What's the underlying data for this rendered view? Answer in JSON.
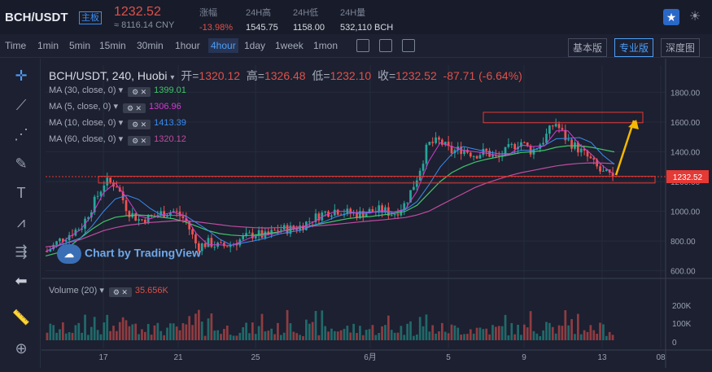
{
  "header": {
    "symbol": "BCH/USDT",
    "tag": "主板",
    "price": "1232.52",
    "price_cny": "≈ 8116.14 CNY",
    "stats": [
      {
        "label": "涨幅",
        "value": "-13.98%",
        "color": "#e0504a"
      },
      {
        "label": "24H高",
        "value": "1545.75",
        "color": "#d8dbe4"
      },
      {
        "label": "24H低",
        "value": "1158.00",
        "color": "#d8dbe4"
      },
      {
        "label": "24H量",
        "value": "532,110 BCH",
        "color": "#d8dbe4"
      }
    ]
  },
  "toolbar": {
    "time_label": "Time",
    "intervals": [
      "1min",
      "5min",
      "15min",
      "30min",
      "1hour",
      "4hour",
      "1day",
      "1week",
      "1mon"
    ],
    "active_interval": "4hour",
    "views": [
      "基本版",
      "专业版",
      "深度图"
    ],
    "active_view": "专业版"
  },
  "chart_title": {
    "pair": "BCH/USDT, 240, Huobi",
    "open_label": "开=",
    "open": "1320.12",
    "high_label": "高=",
    "high": "1326.48",
    "low_label": "低=",
    "low": "1232.10",
    "close_label": "收=",
    "close": "1232.52",
    "change": "-87.71 (-6.64%)"
  },
  "indicators": [
    {
      "label": "MA (30, close, 0)",
      "value": "1399.01",
      "color": "#3fc56a"
    },
    {
      "label": "MA (5, close, 0)",
      "value": "1306.96",
      "color": "#d43ad1"
    },
    {
      "label": "MA (10, close, 0)",
      "value": "1413.39",
      "color": "#3a8cf0"
    },
    {
      "label": "MA (60, close, 0)",
      "value": "1320.12",
      "color": "#c04ca0"
    }
  ],
  "watermark": "Chart by TradingView",
  "volume": {
    "label": "Volume (20)",
    "value": "35.656K"
  },
  "chart_data": {
    "type": "candlestick",
    "ylim": [
      560,
      1900
    ],
    "y_ticks": [
      "1800.00",
      "1600.00",
      "1400.00",
      "1200.00",
      "1000.00",
      "800.00",
      "600.00"
    ],
    "y_tick_values": [
      1800,
      1600,
      1400,
      1200,
      1000,
      800,
      600
    ],
    "last_price_label": "1232.52",
    "x_tick_labels": [
      "17",
      "21",
      "25",
      "6月",
      "5",
      "9",
      "13",
      "08"
    ],
    "volume_ticks": [
      "200K",
      "100K",
      "0"
    ],
    "volume_tick_values": [
      200,
      100,
      0
    ],
    "price_path": [
      730,
      800,
      850,
      900,
      1050,
      1200,
      1180,
      1000,
      940,
      960,
      990,
      1000,
      940,
      760,
      790,
      760,
      780,
      820,
      850,
      830,
      880,
      880,
      900,
      950,
      990,
      1010,
      990,
      980,
      1000,
      1010,
      980,
      1050,
      1220,
      1450,
      1470,
      1400,
      1420,
      1380,
      1400,
      1350,
      1420,
      1470,
      1400,
      1480,
      1600,
      1480,
      1420,
      1350,
      1260,
      1232.52
    ],
    "ma_lines": [
      {
        "name": "MA (30, close, 0)",
        "color": "#3fc56a",
        "values": [
          700,
          720,
          760,
          820,
          880,
          930,
          960,
          970,
          975,
          970,
          960,
          950,
          930,
          900,
          870,
          850,
          840,
          835,
          840,
          850,
          860,
          875,
          890,
          905,
          920,
          935,
          950,
          960,
          965,
          975,
          985,
          1000,
          1040,
          1120,
          1200,
          1260,
          1300,
          1330,
          1350,
          1365,
          1380,
          1395,
          1400,
          1410,
          1430,
          1440,
          1440,
          1430,
          1415,
          1399.01
        ]
      },
      {
        "name": "MA (60, close, 0)",
        "color": "#c04ca0",
        "values": [
          760,
          770,
          790,
          810,
          840,
          870,
          890,
          905,
          915,
          925,
          930,
          935,
          935,
          930,
          920,
          910,
          900,
          895,
          890,
          888,
          890,
          892,
          895,
          900,
          905,
          912,
          920,
          928,
          935,
          942,
          950,
          958,
          975,
          1000,
          1040,
          1080,
          1120,
          1160,
          1190,
          1215,
          1240,
          1260,
          1275,
          1290,
          1305,
          1315,
          1322,
          1325,
          1324,
          1320.12
        ]
      }
    ],
    "annotations": [
      {
        "type": "rectangle",
        "note": "resistance zone",
        "y_range": [
          1595,
          1665
        ]
      },
      {
        "type": "dotted-line",
        "note": "support",
        "y": 1232.52
      },
      {
        "type": "rectangle",
        "note": "support zone",
        "y_range": [
          1190,
          1235
        ]
      },
      {
        "type": "arrow",
        "color": "#f5b800",
        "direction": "up"
      }
    ]
  },
  "colors": {
    "up": "#26a69a",
    "down": "#ef5350",
    "bg": "#1c2030",
    "accent": "#4f9ef5"
  },
  "left_tools": [
    "crosshair-icon",
    "trendline-icon",
    "fib-icon",
    "brush-icon",
    "text-icon",
    "pattern-icon",
    "measure-icon",
    "back-arrow-icon",
    "ruler-icon",
    "zoom-icon"
  ]
}
